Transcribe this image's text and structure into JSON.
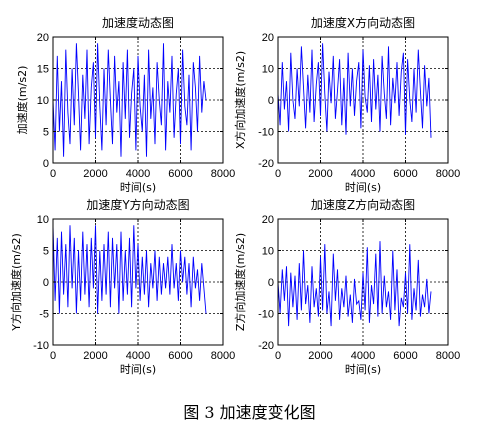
{
  "caption": "图 3  加速度变化图",
  "colors": {
    "series": "#0000ff",
    "grid": "#000000"
  },
  "chart_data": [
    {
      "type": "line",
      "title": "加速度动态图",
      "xlabel": "时间(s)",
      "ylabel": "加速度(m/s2)",
      "xlim": [
        0,
        8000
      ],
      "ylim": [
        0,
        20
      ],
      "xticks": [
        0,
        2000,
        4000,
        6000,
        8000
      ],
      "yticks": [
        0,
        5,
        10,
        15,
        20
      ],
      "grid": true,
      "series": [
        {
          "x": [
            0,
            100,
            200,
            300,
            400,
            500,
            600,
            700,
            800,
            900,
            1000,
            1100,
            1200,
            1300,
            1400,
            1500,
            1600,
            1700,
            1800,
            1900,
            2000,
            2100,
            2200,
            2300,
            2400,
            2500,
            2600,
            2700,
            2800,
            2900,
            3000,
            3100,
            3200,
            3300,
            3400,
            3500,
            3600,
            3700,
            3800,
            3900,
            4000,
            4100,
            4200,
            4300,
            4400,
            4500,
            4600,
            4700,
            4800,
            4900,
            5000,
            5100,
            5200,
            5300,
            5400,
            5500,
            5600,
            5700,
            5800,
            5900,
            6000,
            6100,
            6200,
            6300,
            6400,
            6500,
            6600,
            6700,
            6800,
            6900,
            7000,
            7100,
            7200
          ],
          "values": [
            10,
            2,
            17,
            5,
            13,
            1,
            18,
            8,
            3,
            15,
            6,
            19,
            11,
            2,
            14,
            7,
            18,
            3,
            12,
            16,
            4,
            19,
            9,
            2,
            15,
            6,
            18,
            10,
            3,
            17,
            8,
            13,
            1,
            16,
            7,
            18,
            4,
            11,
            15,
            2,
            17,
            9,
            5,
            14,
            1,
            18,
            7,
            12,
            3,
            16,
            10,
            6,
            19,
            2,
            13,
            8,
            17,
            4,
            11,
            15,
            3,
            18,
            9,
            6,
            14,
            2,
            16,
            12,
            5,
            17,
            8,
            13,
            10
          ]
        }
      ]
    },
    {
      "type": "line",
      "title": "加速度X方向动态图",
      "xlabel": "时间(s)",
      "ylabel": "X方向加速度(m/s2)",
      "xlim": [
        0,
        8000
      ],
      "ylim": [
        -20,
        20
      ],
      "xticks": [
        0,
        2000,
        4000,
        6000,
        8000
      ],
      "yticks": [
        -20,
        -10,
        0,
        10,
        20
      ],
      "grid": true,
      "series": [
        {
          "x": [
            0,
            100,
            200,
            300,
            400,
            500,
            600,
            700,
            800,
            900,
            1000,
            1100,
            1200,
            1300,
            1400,
            1500,
            1600,
            1700,
            1800,
            1900,
            2000,
            2100,
            2200,
            2300,
            2400,
            2500,
            2600,
            2700,
            2800,
            2900,
            3000,
            3100,
            3200,
            3300,
            3400,
            3500,
            3600,
            3700,
            3800,
            3900,
            4000,
            4100,
            4200,
            4300,
            4400,
            4500,
            4600,
            4700,
            4800,
            4900,
            5000,
            5100,
            5200,
            5300,
            5400,
            5500,
            5600,
            5700,
            5800,
            5900,
            6000,
            6100,
            6200,
            6300,
            6400,
            6500,
            6600,
            6700,
            6800,
            6900,
            7000,
            7100,
            7200
          ],
          "values": [
            2,
            -8,
            12,
            -3,
            6,
            -10,
            15,
            0,
            -6,
            10,
            -2,
            17,
            4,
            -9,
            8,
            -4,
            16,
            -7,
            5,
            12,
            -5,
            18,
            2,
            -10,
            9,
            -1,
            14,
            -6,
            3,
            13,
            -8,
            7,
            -11,
            15,
            -2,
            10,
            -5,
            6,
            12,
            -9,
            16,
            1,
            -4,
            11,
            -7,
            13,
            -3,
            8,
            -10,
            14,
            2,
            -6,
            17,
            -8,
            7,
            -1,
            12,
            -5,
            9,
            15,
            -11,
            13,
            0,
            -7,
            10,
            -4,
            16,
            3,
            -9,
            11,
            -2,
            7,
            -12
          ]
        }
      ]
    },
    {
      "type": "line",
      "title": "加速度Y方向动态图",
      "xlabel": "时间(s)",
      "ylabel": "Y方向加速度(m/s2)",
      "xlim": [
        0,
        8000
      ],
      "ylim": [
        -10,
        10
      ],
      "xticks": [
        0,
        2000,
        4000,
        6000,
        8000
      ],
      "yticks": [
        -10,
        -5,
        0,
        5,
        10
      ],
      "grid": true,
      "series": [
        {
          "x": [
            0,
            100,
            200,
            300,
            400,
            500,
            600,
            700,
            800,
            900,
            1000,
            1100,
            1200,
            1300,
            1400,
            1500,
            1600,
            1700,
            1800,
            1900,
            2000,
            2100,
            2200,
            2300,
            2400,
            2500,
            2600,
            2700,
            2800,
            2900,
            3000,
            3100,
            3200,
            3300,
            3400,
            3500,
            3600,
            3700,
            3800,
            3900,
            4000,
            4100,
            4200,
            4300,
            4400,
            4500,
            4600,
            4700,
            4800,
            4900,
            5000,
            5100,
            5200,
            5300,
            5400,
            5500,
            5600,
            5700,
            5800,
            5900,
            6000,
            6100,
            6200,
            6300,
            6400,
            6500,
            6600,
            6700,
            6800,
            6900,
            7000,
            7100,
            7200
          ],
          "values": [
            9,
            -3,
            7,
            -5,
            8,
            -2,
            6,
            -4,
            9,
            -1,
            7,
            -5,
            5,
            -3,
            8,
            -2,
            6,
            -4,
            7,
            -1,
            9,
            -5,
            5,
            -3,
            6,
            -2,
            8,
            -4,
            7,
            -1,
            6,
            -5,
            8,
            -3,
            5,
            -2,
            7,
            -4,
            9,
            -1,
            6,
            -3,
            4,
            -2,
            5,
            -4,
            3,
            -1,
            5,
            -3,
            4,
            -2,
            3,
            -1,
            4,
            -2,
            6,
            -1,
            3,
            -3,
            5,
            0,
            4,
            -2,
            3,
            -4,
            4,
            -1,
            2,
            -3,
            3,
            -1,
            -5
          ]
        }
      ]
    },
    {
      "type": "line",
      "title": "加速度Z方向动态图",
      "xlabel": "时间(s)",
      "ylabel": "Z方向加速度(m/s2)",
      "xlim": [
        0,
        8000
      ],
      "ylim": [
        -20,
        20
      ],
      "xticks": [
        0,
        2000,
        4000,
        6000,
        8000
      ],
      "yticks": [
        -20,
        -10,
        0,
        10,
        20
      ],
      "grid": true,
      "series": [
        {
          "x": [
            0,
            100,
            200,
            300,
            400,
            500,
            600,
            700,
            800,
            900,
            1000,
            1100,
            1200,
            1300,
            1400,
            1500,
            1600,
            1700,
            1800,
            1900,
            2000,
            2100,
            2200,
            2300,
            2400,
            2500,
            2600,
            2700,
            2800,
            2900,
            3000,
            3100,
            3200,
            3300,
            3400,
            3500,
            3600,
            3700,
            3800,
            3900,
            4000,
            4100,
            4200,
            4300,
            4400,
            4500,
            4600,
            4700,
            4800,
            4900,
            5000,
            5100,
            5200,
            5300,
            5400,
            5500,
            5600,
            5700,
            5800,
            5900,
            6000,
            6100,
            6200,
            6300,
            6400,
            6500,
            6600,
            6700,
            6800,
            6900,
            7000,
            7100,
            7200
          ],
          "values": [
            0,
            -10,
            4,
            -6,
            5,
            -14,
            3,
            -8,
            2,
            -12,
            6,
            -9,
            10,
            -7,
            -1,
            -13,
            5,
            -8,
            -2,
            -11,
            8,
            -9,
            12,
            -10,
            -3,
            -14,
            9,
            -6,
            4,
            -12,
            -2,
            -8,
            2,
            -11,
            -4,
            -13,
            1,
            -7,
            -6,
            -12,
            3,
            -9,
            11,
            -13,
            -1,
            -7,
            9,
            -11,
            13,
            -10,
            2,
            -8,
            -3,
            -12,
            10,
            -9,
            4,
            -14,
            -5,
            -8,
            3,
            -10,
            12,
            -12,
            -2,
            -9,
            7,
            -11,
            -4,
            -8,
            1,
            -10,
            -3
          ]
        }
      ]
    }
  ]
}
